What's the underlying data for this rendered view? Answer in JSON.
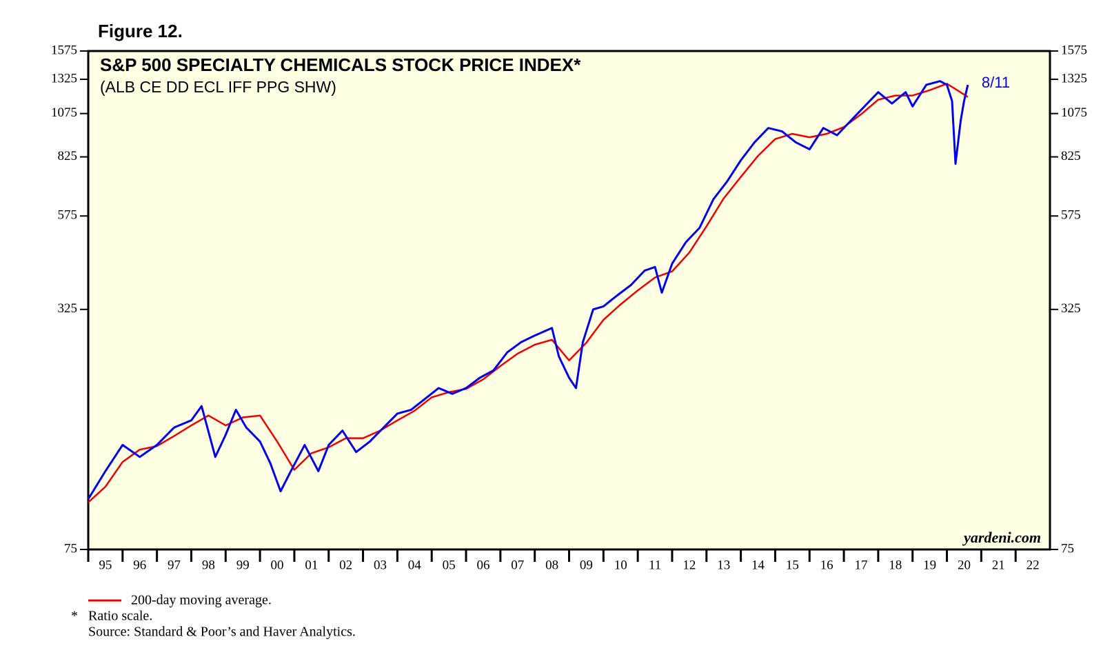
{
  "chart_data": {
    "type": "line",
    "figure_label": "Figure 12.",
    "title": "S&P 500 SPECIALTY CHEMICALS STOCK PRICE INDEX*",
    "subtitle": "(ALB CE DD ECL IFF PPG SHW)",
    "end_label": "8/11",
    "watermark": "yardeni.com",
    "note_marker": "*",
    "note": "Ratio scale.",
    "source": "Source: Standard & Poor’s and Haver Analytics.",
    "log_scale": true,
    "background": "#ffffe3",
    "xlim": [
      1995,
      2023
    ],
    "xticks": [
      {
        "value": 1995,
        "label": "95"
      },
      {
        "value": 1996,
        "label": "96"
      },
      {
        "value": 1997,
        "label": "97"
      },
      {
        "value": 1998,
        "label": "98"
      },
      {
        "value": 1999,
        "label": "99"
      },
      {
        "value": 2000,
        "label": "00"
      },
      {
        "value": 2001,
        "label": "01"
      },
      {
        "value": 2002,
        "label": "02"
      },
      {
        "value": 2003,
        "label": "03"
      },
      {
        "value": 2004,
        "label": "04"
      },
      {
        "value": 2005,
        "label": "05"
      },
      {
        "value": 2006,
        "label": "06"
      },
      {
        "value": 2007,
        "label": "07"
      },
      {
        "value": 2008,
        "label": "08"
      },
      {
        "value": 2009,
        "label": "09"
      },
      {
        "value": 2010,
        "label": "10"
      },
      {
        "value": 2011,
        "label": "11"
      },
      {
        "value": 2012,
        "label": "12"
      },
      {
        "value": 2013,
        "label": "13"
      },
      {
        "value": 2014,
        "label": "14"
      },
      {
        "value": 2015,
        "label": "15"
      },
      {
        "value": 2016,
        "label": "16"
      },
      {
        "value": 2017,
        "label": "17"
      },
      {
        "value": 2018,
        "label": "18"
      },
      {
        "value": 2019,
        "label": "19"
      },
      {
        "value": 2020,
        "label": "20"
      },
      {
        "value": 2021,
        "label": "21"
      },
      {
        "value": 2022,
        "label": "22"
      }
    ],
    "ylim": [
      75,
      1575
    ],
    "yticks": [
      75,
      325,
      575,
      825,
      1075,
      1325,
      1575
    ],
    "series": [
      {
        "color": "#0000ee",
        "x": [
          1995.0,
          1995.5,
          1996.0,
          1996.5,
          1997.0,
          1997.5,
          1998.0,
          1998.3,
          1998.7,
          1999.0,
          1999.3,
          1999.6,
          2000.0,
          2000.3,
          2000.6,
          2000.9,
          2001.3,
          2001.7,
          2002.0,
          2002.4,
          2002.8,
          2003.2,
          2003.6,
          2004.0,
          2004.4,
          2004.8,
          2005.2,
          2005.6,
          2006.0,
          2006.4,
          2006.8,
          2007.2,
          2007.6,
          2008.0,
          2008.5,
          2008.7,
          2009.0,
          2009.2,
          2009.4,
          2009.7,
          2010.0,
          2010.4,
          2010.8,
          2011.2,
          2011.5,
          2011.7,
          2012.0,
          2012.4,
          2012.8,
          2013.2,
          2013.6,
          2014.0,
          2014.4,
          2014.8,
          2015.2,
          2015.6,
          2016.0,
          2016.4,
          2016.8,
          2017.2,
          2017.6,
          2018.0,
          2018.4,
          2018.8,
          2019.0,
          2019.4,
          2019.8,
          2020.0,
          2020.15,
          2020.25,
          2020.4,
          2020.5,
          2020.61
        ],
        "values": [
          102,
          121,
          142,
          132,
          142,
          158,
          165,
          180,
          132,
          151,
          176,
          158,
          145,
          127,
          107,
          121,
          142,
          121,
          142,
          155,
          136,
          145,
          158,
          172,
          176,
          188,
          201,
          194,
          201,
          214,
          224,
          250,
          266,
          277,
          290,
          244,
          214,
          201,
          266,
          325,
          331,
          354,
          377,
          412,
          421,
          360,
          430,
          490,
          535,
          637,
          710,
          808,
          902,
          984,
          964,
          902,
          864,
          984,
          942,
          1029,
          1123,
          1225,
          1143,
          1225,
          1123,
          1281,
          1310,
          1281,
          1160,
          791,
          1029,
          1160,
          1281
        ]
      },
      {
        "name": "200-day moving average.",
        "color": "#ee0000",
        "x": [
          1995.0,
          1995.5,
          1996.0,
          1996.5,
          1997.0,
          1997.5,
          1998.0,
          1998.5,
          1999.0,
          1999.5,
          2000.0,
          2000.5,
          2001.0,
          2001.5,
          2002.0,
          2002.5,
          2003.0,
          2003.5,
          2004.0,
          2004.5,
          2005.0,
          2005.5,
          2006.0,
          2006.5,
          2007.0,
          2007.5,
          2008.0,
          2008.5,
          2009.0,
          2009.5,
          2010.0,
          2010.5,
          2011.0,
          2011.5,
          2012.0,
          2012.5,
          2013.0,
          2013.5,
          2014.0,
          2014.5,
          2015.0,
          2015.5,
          2016.0,
          2016.5,
          2017.0,
          2017.5,
          2018.0,
          2018.5,
          2019.0,
          2019.5,
          2020.0,
          2020.3,
          2020.61
        ],
        "values": [
          100,
          110,
          128,
          138,
          141,
          150,
          160,
          170,
          160,
          168,
          170,
          145,
          122,
          135,
          140,
          148,
          148,
          155,
          165,
          175,
          190,
          196,
          200,
          212,
          230,
          248,
          262,
          270,
          238,
          265,
          305,
          335,
          365,
          395,
          410,
          460,
          540,
          640,
          730,
          830,
          920,
          950,
          930,
          950,
          990,
          1070,
          1170,
          1200,
          1200,
          1240,
          1290,
          1240,
          1190
        ]
      }
    ]
  }
}
